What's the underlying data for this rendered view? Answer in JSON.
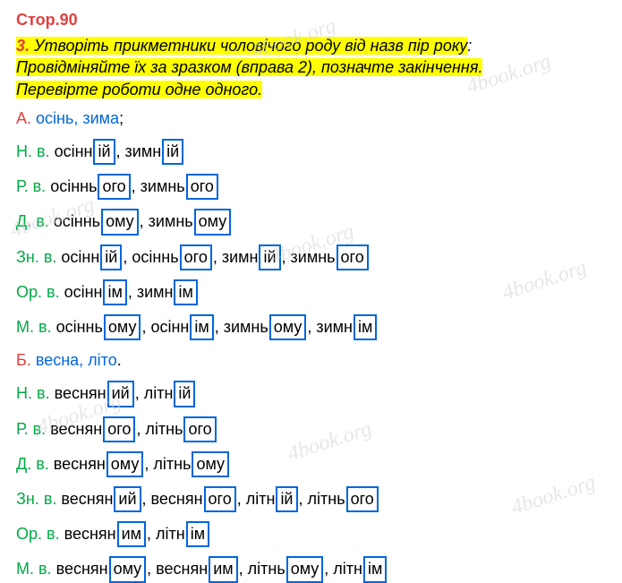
{
  "header": "Стор.90",
  "task": {
    "num": "3.",
    "part1": " Утворіть прикметники чоловічого роду від назв пір року",
    "colon": ":",
    "part2": "Провідміняйте їх за зразком (вправа 2), позначте закінчення.",
    "part3": "Перевірте роботи одне одного."
  },
  "variantA": {
    "letter": "А.",
    "words": "осінь, зима",
    "semi": ";"
  },
  "casesA": {
    "nv": {
      "label": "Н. в.",
      "s1": "осінн",
      "b1": "ій",
      "c1": ", зимн",
      "b2": "ій"
    },
    "rv": {
      "label": "Р. в.",
      "s1": "осіннь",
      "b1": "ого",
      "c1": ", зимнь",
      "b2": "ого"
    },
    "dv": {
      "label": "Д. в.",
      "s1": "осіннь",
      "b1": "ому",
      "c1": ", зимнь",
      "b2": "ому"
    },
    "znv": {
      "label": "Зн. в.",
      "s1": "осінн",
      "b1": "ій",
      "c1": ", осіннь",
      "b2": "ого",
      "c2": ", зимн",
      "b3": "ій",
      "c3": ", зимнь",
      "b4": "ого"
    },
    "orv": {
      "label": "Ор. в.",
      "s1": "осінн",
      "b1": "ім",
      "c1": ", зимн",
      "b2": "ім"
    },
    "mv": {
      "label": "М. в.",
      "s1": "осіннь",
      "b1": "ому",
      "c1": ", осінн",
      "b2": "ім",
      "c2": ", зимнь",
      "b3": "ому",
      "c3": ", зимн",
      "b4": "ім"
    }
  },
  "variantB": {
    "letter": "Б.",
    "words": "весна, літо",
    "dot": "."
  },
  "casesB": {
    "nv": {
      "label": "Н. в.",
      "s1": "веснян",
      "b1": "ий",
      "c1": ", літн",
      "b2": "ій"
    },
    "rv": {
      "label": "Р. в.",
      "s1": "веснян",
      "b1": "ого",
      "c1": ", літнь",
      "b2": "ого"
    },
    "dv": {
      "label": "Д. в.",
      "s1": "веснян",
      "b1": "ому",
      "c1": ", літнь",
      "b2": "ому"
    },
    "znv": {
      "label": "Зн. в.",
      "s1": "веснян",
      "b1": "ий",
      "c1": ", веснян",
      "b2": "ого",
      "c2": ", літн",
      "b3": "ій",
      "c3": ", літнь",
      "b4": "ого"
    },
    "orv": {
      "label": "Ор. в.",
      "s1": "веснян",
      "b1": "им",
      "c1": ", літн",
      "b2": "ім"
    },
    "mv": {
      "label": "М. в.",
      "s1": "веснян",
      "b1": "ому",
      "c1": ", веснян",
      "b2": "им",
      "c2": ", літнь",
      "b3": "ому",
      "c3": ", літн",
      "b4": "ім"
    }
  },
  "watermark": "4book.org",
  "colors": {
    "red": "#e04040",
    "blue": "#0066dd",
    "green": "#00aa44",
    "highlight": "#ffff00",
    "boxborder": "#0066dd"
  }
}
